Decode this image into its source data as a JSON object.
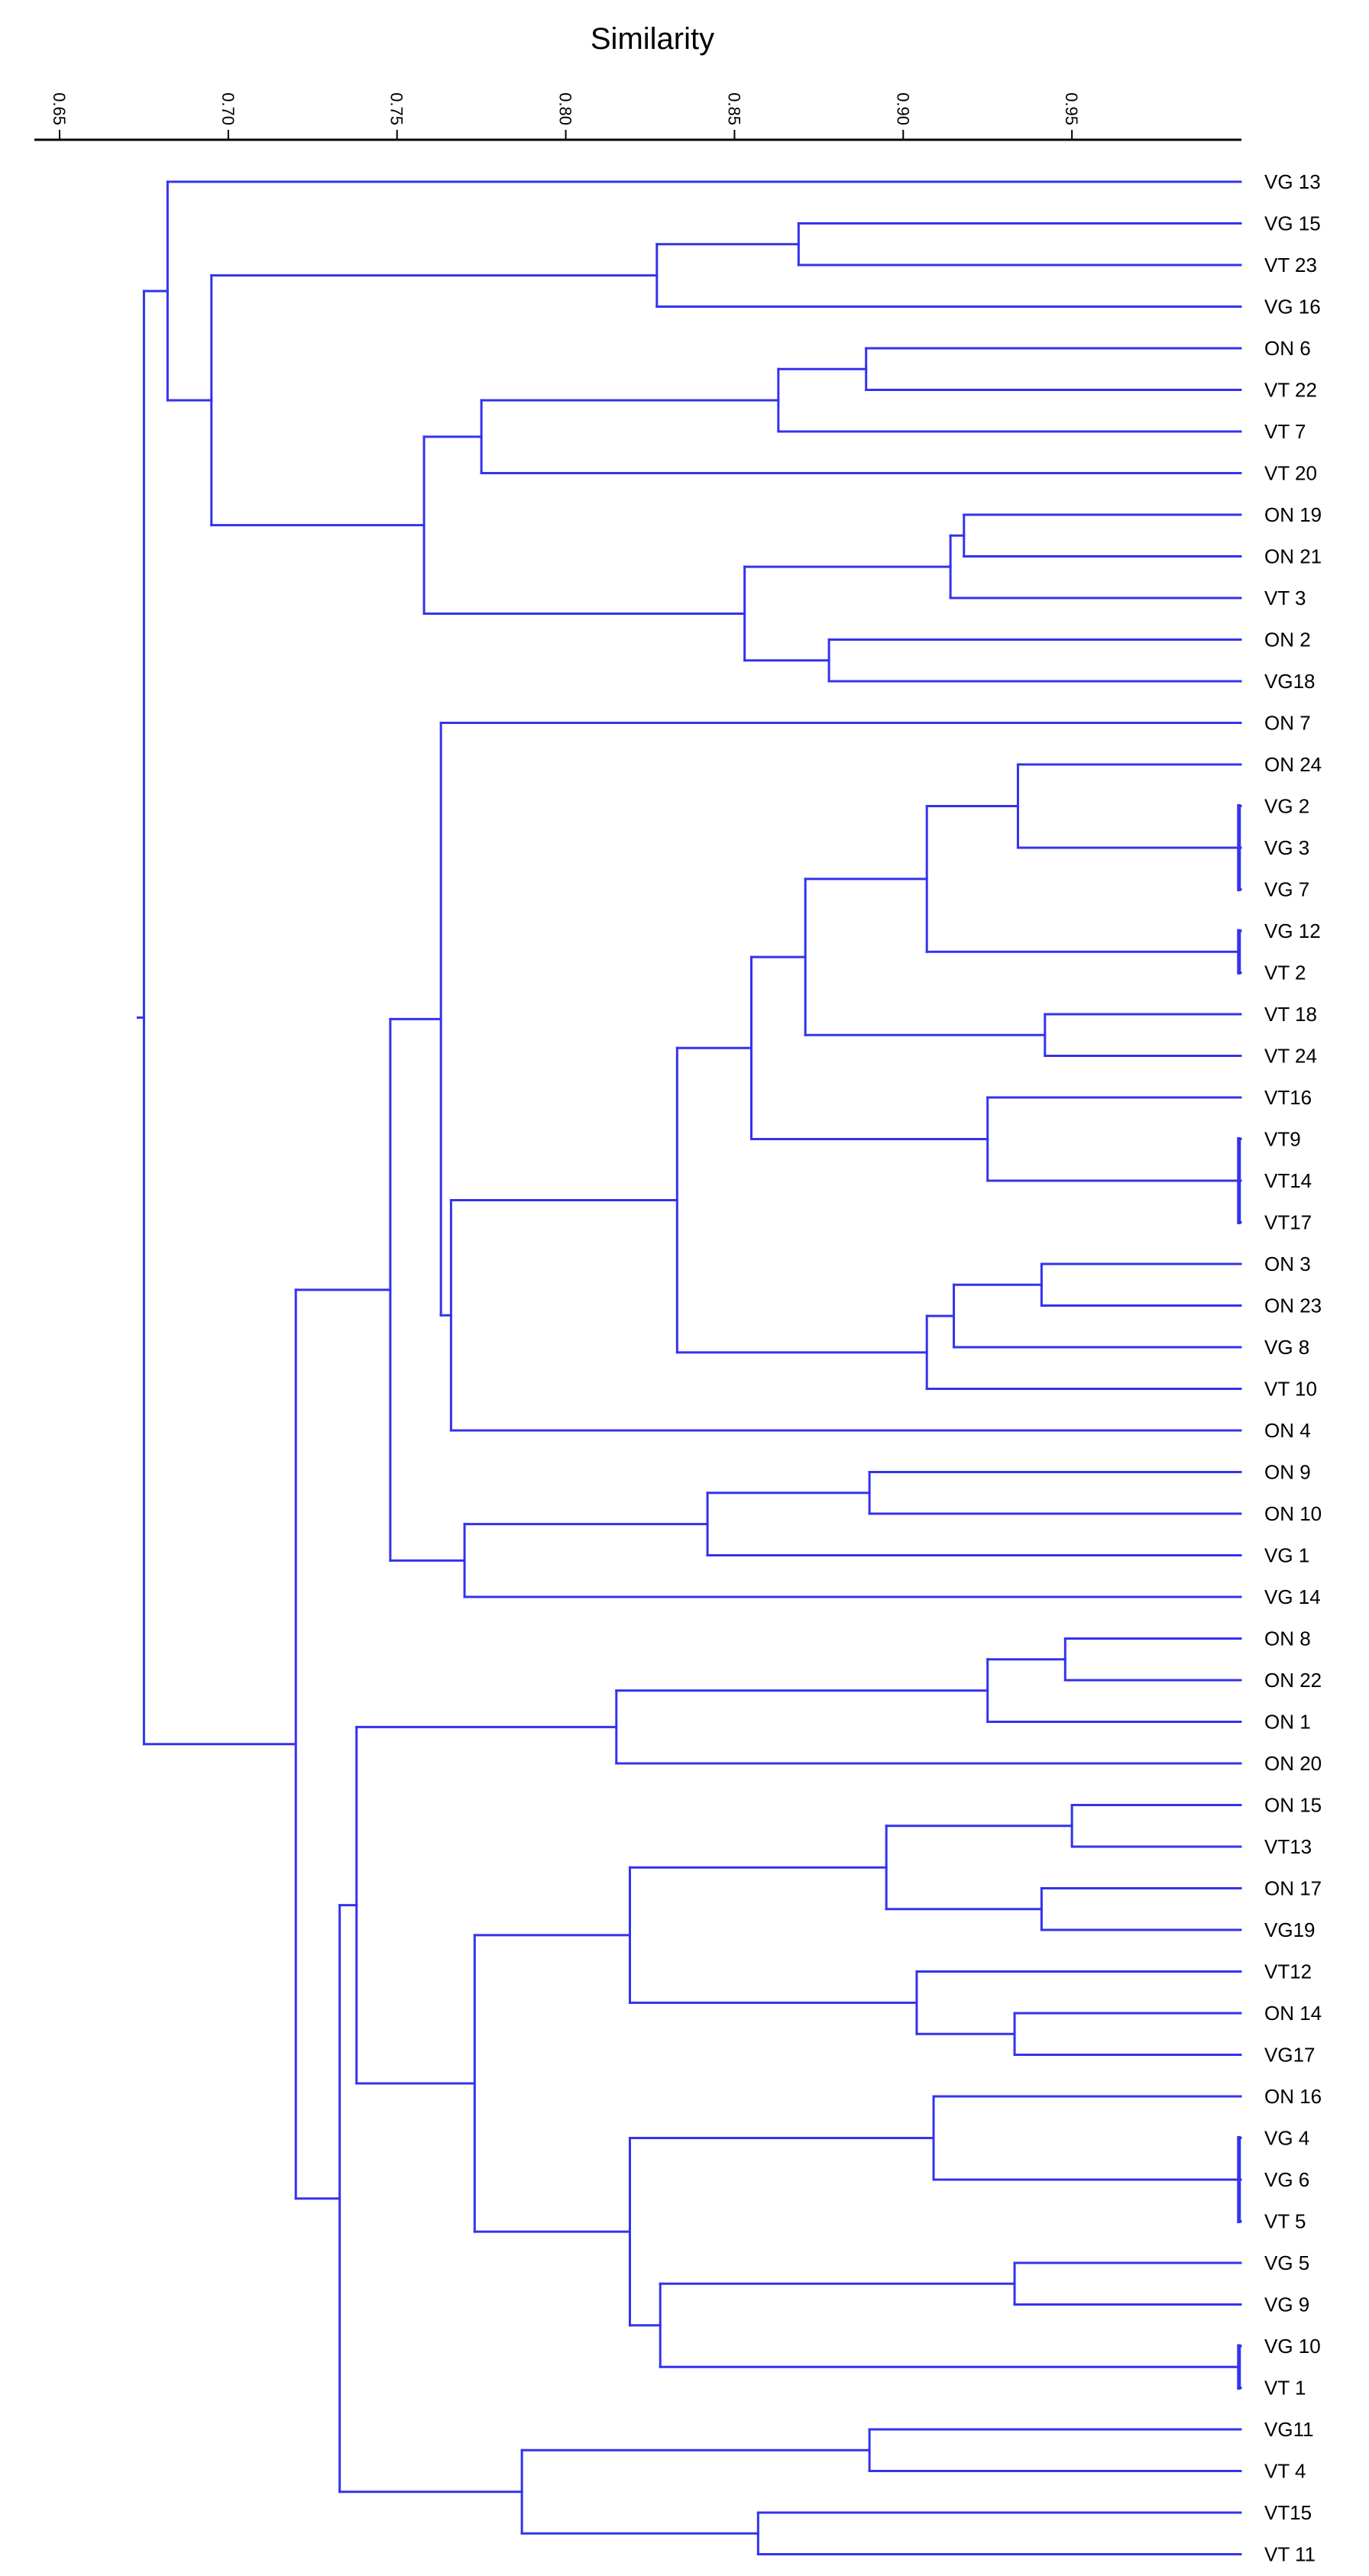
{
  "chart_data": {
    "type": "dendrogram",
    "title": "Similarity",
    "axis": {
      "min": 0.65,
      "max": 1.0,
      "ticks": [
        "0.65",
        "0.70",
        "0.75",
        "0.80",
        "0.85",
        "0.90",
        "0.95"
      ],
      "placement": "top"
    },
    "line_color": "#3333ee",
    "leaves": [
      "VG 13",
      "VG 15",
      "VT 23",
      "VG 16",
      "ON 6",
      "VT 22",
      "VT 7",
      "VT 20",
      "ON 19",
      "ON 21",
      "VT 3",
      "ON 2",
      "VG18",
      "ON 7",
      "ON 24",
      "VG 2",
      "VG 3",
      "VG 7",
      "VG 12",
      "VT 2",
      "VT 18",
      "VT 24",
      "VT16",
      "VT9",
      "VT14",
      "VT17",
      "ON 3",
      "ON 23",
      "VG 8",
      "VT 10",
      "ON 4",
      "ON 9",
      "ON 10",
      "VG 1",
      "VG 14",
      "ON 8",
      "ON 22",
      "ON 1",
      "ON 20",
      "ON 15",
      "VT13",
      "ON 17",
      "VG19",
      "VT12",
      "ON 14",
      "VG17",
      "ON 16",
      "VG 4",
      "VG 6",
      "VT 5",
      "VG 5",
      "VG 9",
      "VG 10",
      "VT 1",
      "VG11",
      "VT 4",
      "VT15",
      "VT 11"
    ],
    "tree": {
      "h": 0.675,
      "c": [
        {
          "h": 0.682,
          "c": [
            {
              "l": "VG 13"
            },
            {
              "h": 0.695,
              "c": [
                {
                  "h": 0.827,
                  "c": [
                    {
                      "h": 0.869,
                      "c": [
                        {
                          "l": "VG 15"
                        },
                        {
                          "l": "VT 23"
                        }
                      ]
                    },
                    {
                      "l": "VG 16"
                    }
                  ]
                },
                {
                  "h": 0.758,
                  "c": [
                    {
                      "h": 0.775,
                      "c": [
                        {
                          "h": 0.863,
                          "c": [
                            {
                              "h": 0.889,
                              "c": [
                                {
                                  "l": "ON 6"
                                },
                                {
                                  "l": "VT 22"
                                }
                              ]
                            },
                            {
                              "l": "VT 7"
                            }
                          ]
                        },
                        {
                          "l": "VT 20"
                        }
                      ]
                    },
                    {
                      "h": 0.853,
                      "c": [
                        {
                          "h": 0.914,
                          "c": [
                            {
                              "h": 0.918,
                              "c": [
                                {
                                  "l": "ON 19"
                                },
                                {
                                  "l": "ON 21"
                                }
                              ]
                            },
                            {
                              "l": "VT 3"
                            }
                          ]
                        },
                        {
                          "h": 0.878,
                          "c": [
                            {
                              "l": "ON 2"
                            },
                            {
                              "l": "VG18"
                            }
                          ]
                        }
                      ]
                    }
                  ]
                }
              ]
            }
          ]
        },
        {
          "h": 0.72,
          "c": [
            {
              "h": 0.748,
              "c": [
                {
                  "h": 0.763,
                  "c": [
                    {
                      "l": "ON 7"
                    },
                    {
                      "h": 0.766,
                      "c": [
                        {
                          "h": 0.833,
                          "c": [
                            {
                              "h": 0.855,
                              "c": [
                                {
                                  "h": 0.871,
                                  "c": [
                                    {
                                      "h": 0.907,
                                      "c": [
                                        {
                                          "h": 0.934,
                                          "c": [
                                            {
                                              "l": "ON 24"
                                            },
                                            {
                                              "h": 0.9995,
                                              "c": [
                                                {
                                                  "l": "VG 2"
                                                },
                                                {
                                                  "l": "VG 3"
                                                },
                                                {
                                                  "l": "VG 7"
                                                }
                                              ]
                                            }
                                          ]
                                        },
                                        {
                                          "h": 0.9995,
                                          "c": [
                                            {
                                              "l": "VG 12"
                                            },
                                            {
                                              "l": "VT 2"
                                            }
                                          ]
                                        }
                                      ]
                                    },
                                    {
                                      "h": 0.942,
                                      "c": [
                                        {
                                          "l": "VT 18"
                                        },
                                        {
                                          "l": "VT 24"
                                        }
                                      ]
                                    }
                                  ]
                                },
                                {
                                  "h": 0.925,
                                  "c": [
                                    {
                                      "l": "VT16"
                                    },
                                    {
                                      "h": 0.9995,
                                      "c": [
                                        {
                                          "l": "VT9"
                                        },
                                        {
                                          "l": "VT14"
                                        },
                                        {
                                          "l": "VT17"
                                        }
                                      ]
                                    }
                                  ]
                                }
                              ]
                            },
                            {
                              "h": 0.907,
                              "c": [
                                {
                                  "h": 0.915,
                                  "c": [
                                    {
                                      "h": 0.941,
                                      "c": [
                                        {
                                          "l": "ON 3"
                                        },
                                        {
                                          "l": "ON 23"
                                        }
                                      ]
                                    },
                                    {
                                      "l": "VG 8"
                                    }
                                  ]
                                },
                                {
                                  "l": "VT 10"
                                }
                              ]
                            }
                          ]
                        },
                        {
                          "l": "ON 4"
                        }
                      ]
                    }
                  ]
                },
                {
                  "h": 0.77,
                  "c": [
                    {
                      "h": 0.842,
                      "c": [
                        {
                          "h": 0.89,
                          "c": [
                            {
                              "l": "ON 9"
                            },
                            {
                              "l": "ON 10"
                            }
                          ]
                        },
                        {
                          "l": "VG 1"
                        }
                      ]
                    },
                    {
                      "l": "VG 14"
                    }
                  ]
                }
              ]
            },
            {
              "h": 0.733,
              "c": [
                {
                  "h": 0.738,
                  "c": [
                    {
                      "h": 0.815,
                      "c": [
                        {
                          "h": 0.925,
                          "c": [
                            {
                              "h": 0.948,
                              "c": [
                                {
                                  "l": "ON 8"
                                },
                                {
                                  "l": "ON 22"
                                }
                              ]
                            },
                            {
                              "l": "ON 1"
                            }
                          ]
                        },
                        {
                          "l": "ON 20"
                        }
                      ]
                    },
                    {
                      "h": 0.773,
                      "c": [
                        {
                          "h": 0.819,
                          "c": [
                            {
                              "h": 0.895,
                              "c": [
                                {
                                  "h": 0.95,
                                  "c": [
                                    {
                                      "l": "ON 15"
                                    },
                                    {
                                      "l": "VT13"
                                    }
                                  ]
                                },
                                {
                                  "h": 0.941,
                                  "c": [
                                    {
                                      "l": "ON 17"
                                    },
                                    {
                                      "l": "VG19"
                                    }
                                  ]
                                }
                              ]
                            },
                            {
                              "h": 0.904,
                              "c": [
                                {
                                  "l": "VT12"
                                },
                                {
                                  "h": 0.933,
                                  "c": [
                                    {
                                      "l": "ON 14"
                                    },
                                    {
                                      "l": "VG17"
                                    }
                                  ]
                                }
                              ]
                            }
                          ]
                        },
                        {
                          "h": 0.819,
                          "c": [
                            {
                              "h": 0.909,
                              "c": [
                                {
                                  "l": "ON 16"
                                },
                                {
                                  "h": 0.9995,
                                  "c": [
                                    {
                                      "l": "VG 4"
                                    },
                                    {
                                      "l": "VG 6"
                                    },
                                    {
                                      "l": "VT 5"
                                    }
                                  ]
                                }
                              ]
                            },
                            {
                              "h": 0.828,
                              "c": [
                                {
                                  "h": 0.933,
                                  "c": [
                                    {
                                      "l": "VG 5"
                                    },
                                    {
                                      "l": "VG 9"
                                    }
                                  ]
                                },
                                {
                                  "h": 0.9995,
                                  "c": [
                                    {
                                      "l": "VG 10"
                                    },
                                    {
                                      "l": "VT 1"
                                    }
                                  ]
                                }
                              ]
                            }
                          ]
                        }
                      ]
                    }
                  ]
                },
                {
                  "h": 0.787,
                  "c": [
                    {
                      "h": 0.89,
                      "c": [
                        {
                          "l": "VG11"
                        },
                        {
                          "l": "VT 4"
                        }
                      ]
                    },
                    {
                      "h": 0.857,
                      "c": [
                        {
                          "l": "VT15"
                        },
                        {
                          "l": "VT 11"
                        }
                      ]
                    }
                  ]
                }
              ]
            }
          ]
        }
      ]
    }
  }
}
